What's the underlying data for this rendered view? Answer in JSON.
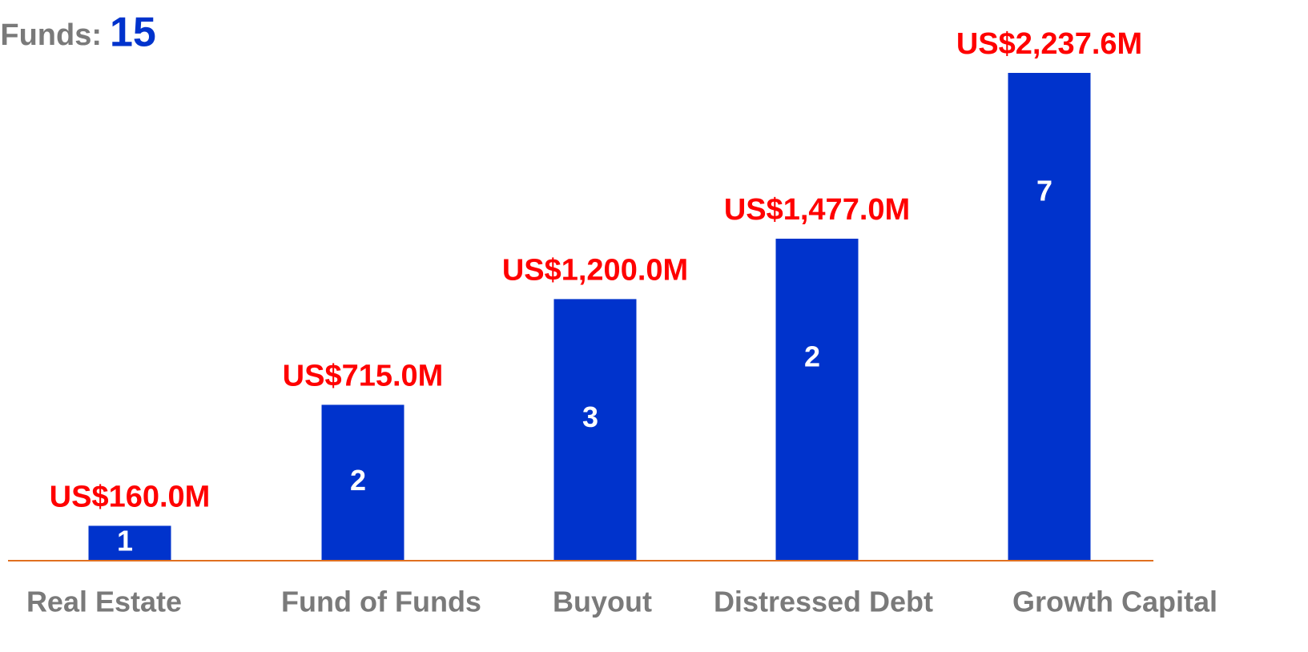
{
  "chart_data": {
    "type": "bar",
    "title": "Funds:",
    "total": 15,
    "categories": [
      "Real Estate",
      "Fund of Funds",
      "Buyout",
      "Distressed Debt",
      "Growth Capital"
    ],
    "values": [
      160.0,
      715.0,
      1200.0,
      1477.0,
      2237.6
    ],
    "value_labels": [
      "US$160.0M",
      "US$715.0M",
      "US$1,200.0M",
      "US$1,477.0M",
      "US$2,237.6M"
    ],
    "counts": [
      1,
      2,
      3,
      2,
      7
    ],
    "color": "#0033cc",
    "label_color": "#ff0000",
    "baseline_color": "#e07020"
  }
}
